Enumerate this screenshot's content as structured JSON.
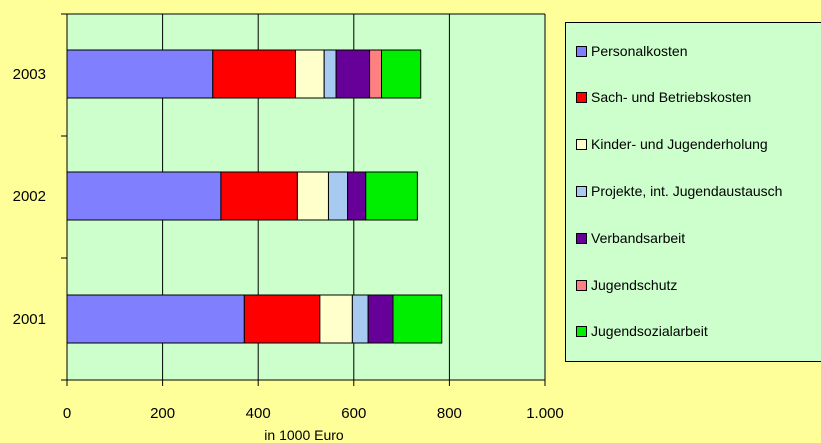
{
  "chart_data": {
    "type": "bar",
    "orientation": "horizontal",
    "stacked": true,
    "categories": [
      "2001",
      "2002",
      "2003"
    ],
    "series": [
      {
        "name": "Personalkosten",
        "color": "#8080FF",
        "values": [
          371,
          322,
          305
        ]
      },
      {
        "name": "Sach- und Betriebskosten",
        "color": "#FF0000",
        "values": [
          158,
          160,
          173
        ]
      },
      {
        "name": "Kinder- und Jugenderholung",
        "color": "#FFFFCC",
        "values": [
          68,
          65,
          60
        ]
      },
      {
        "name": "Projekte, int. Jugendaustausch",
        "color": "#A6CAF0",
        "values": [
          33,
          40,
          25
        ]
      },
      {
        "name": "Verbandsarbeit",
        "color": "#660099",
        "values": [
          52,
          38,
          70
        ]
      },
      {
        "name": "Jugendschutz",
        "color": "#FF8080",
        "values": [
          0,
          0,
          25
        ]
      },
      {
        "name": "Jugendsozialarbeit",
        "color": "#00EE00",
        "values": [
          102,
          108,
          82
        ]
      }
    ],
    "xlim": [
      0,
      1000
    ],
    "xticks": [
      "0",
      "200",
      "400",
      "600",
      "800",
      "1.000"
    ],
    "xtick_values": [
      0,
      200,
      400,
      600,
      800,
      1000
    ],
    "xlabel": "in 1000 Euro",
    "ylabel": "",
    "title": "",
    "grid": "vertical",
    "legend_position": "right",
    "plot_background": "#CCFFCC",
    "page_background": "#FFFF99"
  }
}
